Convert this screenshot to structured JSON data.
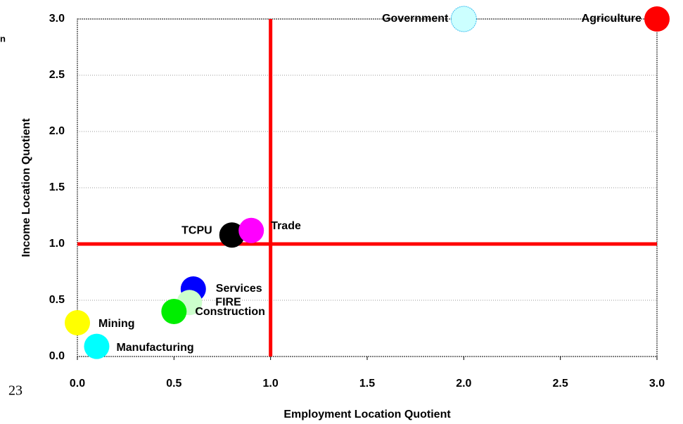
{
  "chart_data": {
    "type": "scatter",
    "xlabel": "Employment Location Quotient",
    "ylabel": "Income Location Quotient",
    "series": [
      {
        "name": "Government",
        "color": "#ccffff",
        "x": 2.0,
        "y": 3.0
      },
      {
        "name": "Agriculture",
        "color": "#ff0000",
        "x": 3.0,
        "y": 3.0
      },
      {
        "name": "TCPU",
        "color": "#000000",
        "x": 0.8,
        "y": 1.08
      },
      {
        "name": "Trade",
        "color": "#ff00ff",
        "x": 0.9,
        "y": 1.12
      },
      {
        "name": "Services",
        "color": "#0000ff",
        "x": 0.6,
        "y": 0.6
      },
      {
        "name": "FIRE",
        "color": "#ccffcc",
        "x": 0.58,
        "y": 0.48
      },
      {
        "name": "Construction",
        "color": "#00ee00",
        "x": 0.5,
        "y": 0.4
      },
      {
        "name": "Mining",
        "color": "#ffff00",
        "x": 0.0,
        "y": 0.3
      },
      {
        "name": "Manufacturing",
        "color": "#00ffff",
        "x": 0.1,
        "y": 0.09
      }
    ],
    "xlim": [
      0,
      3.0
    ],
    "ylim": [
      0,
      3.0
    ],
    "xticks": [
      {
        "value": 0,
        "label": "0.0"
      },
      0.5,
      {
        "value": 1,
        "label": "1.0"
      },
      1.5,
      {
        "value": 2,
        "label": "2.0"
      },
      2.5,
      {
        "value": 3,
        "label": "3.0"
      }
    ],
    "yticks": [
      {
        "value": 0,
        "label": "0.0"
      },
      0.5,
      {
        "value": 1,
        "label": "1.0"
      },
      1.5,
      {
        "value": 2,
        "label": "2.0"
      },
      2.5,
      {
        "value": 3,
        "label": "3.0"
      }
    ],
    "reference_lines": {
      "x": 1,
      "y": 1,
      "color": "#ff0000"
    },
    "grid": true,
    "annotations": [
      "23",
      "n"
    ]
  }
}
